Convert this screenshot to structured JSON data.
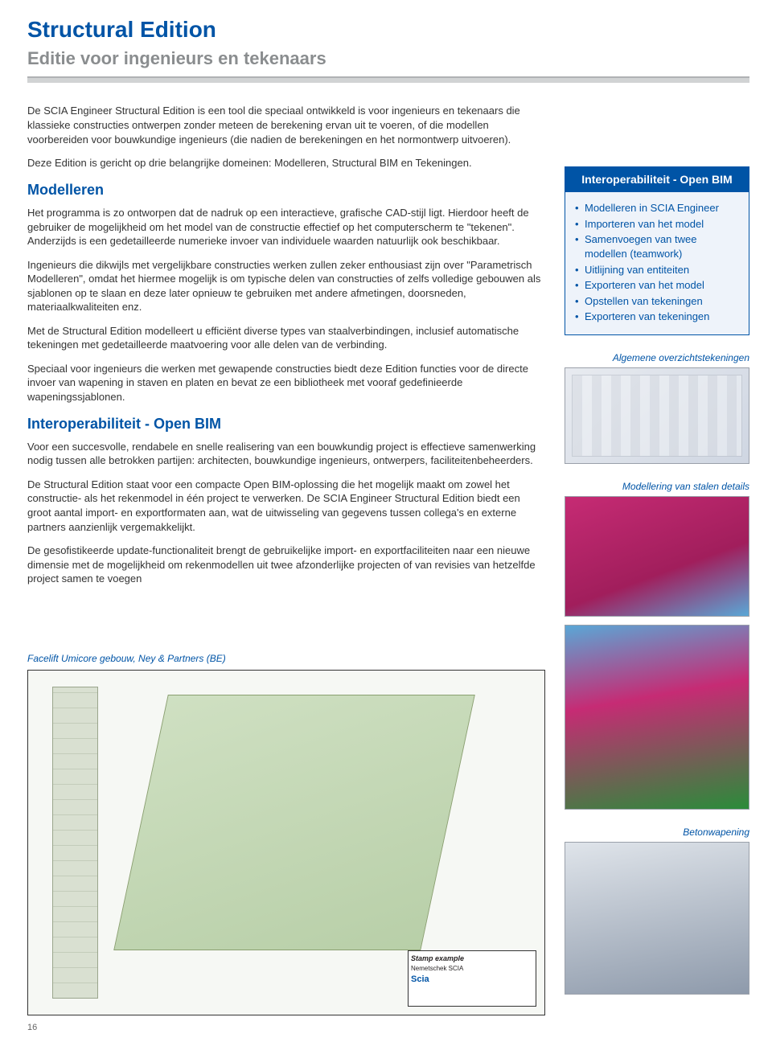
{
  "title": "Structural Edition",
  "subtitle": "Editie voor ingenieurs en tekenaars",
  "intro": "De SCIA Engineer Structural Edition is een tool die speciaal ontwikkeld is voor ingenieurs en tekenaars die klassieke constructies ontwerpen zonder meteen de berekening ervan uit te voeren, of die modellen voorbereiden voor bouwkundige ingenieurs (die nadien de berekeningen en het normontwerp uitvoeren).",
  "intro2": "Deze Edition is gericht op drie belangrijke domeinen: Modelleren, Structural BIM en Tekeningen.",
  "section_modelleren": {
    "heading": "Modelleren",
    "p1": "Het programma is zo ontworpen dat de nadruk op een interactieve, grafische CAD-stijl ligt. Hierdoor heeft de gebruiker de mogelijkheid om het model van de constructie effectief op het computerscherm te \"tekenen\". Anderzijds is een gedetailleerde numerieke invoer van individuele waarden natuurlijk ook beschikbaar.",
    "p2": "Ingenieurs die dikwijls met vergelijkbare constructies werken zullen zeker enthousiast zijn over \"Parametrisch Modelleren\", omdat het hiermee mogelijk is om typische delen van constructies of zelfs volledige gebouwen als sjablonen op te slaan en deze later opnieuw te gebruiken met andere afmetingen, doorsneden, materiaalkwaliteiten enz.",
    "p3": "Met de Structural Edition modelleert u efficiënt diverse types van staalverbindingen, inclusief automatische tekeningen met gedetailleerde maatvoering voor alle delen van de verbinding.",
    "p4": "Speciaal voor ingenieurs die werken met gewapende constructies biedt deze Edition functies voor de directe invoer van wapening in staven en platen en bevat ze een bibliotheek met vooraf gedefinieerde wapeningssjablonen."
  },
  "section_interop": {
    "heading": "Interoperabiliteit - Open BIM",
    "p1": "Voor een succesvolle, rendabele en snelle realisering van een bouwkundig project is effectieve samenwerking nodig tussen alle betrokken partijen: architecten, bouwkundige ingenieurs, ontwerpers, faciliteitenbeheerders.",
    "p2": "De Structural Edition staat voor een compacte Open BIM-oplossing die het mogelijk maakt om zowel het constructie- als het rekenmodel in één project te verwerken. De SCIA Engineer Structural Edition biedt een groot aantal import- en exportformaten aan, wat de uitwisseling van gegevens tussen collega's en externe partners aanzienlijk vergemakkelijkt.",
    "p3": "De gesofistikeerde update-functionaliteit brengt de gebruikelijke import- en exportfaciliteiten naar een nieuwe dimensie met de mogelijkheid om rekenmodellen uit twee afzonderlijke projecten of van revisies van hetzelfde project samen te voegen"
  },
  "sidebar": {
    "title": "Interoperabiliteit - Open BIM",
    "items": [
      "Modelleren in SCIA Engineer",
      "Importeren van het model",
      "Samenvoegen van twee modellen (teamwork)",
      "Uitlijning van entiteiten",
      "Exporteren van het model",
      "Opstellen van tekeningen",
      "Exporteren van tekeningen"
    ]
  },
  "captions": {
    "c1": "Algemene overzichtstekeningen",
    "c2": "Modellering van stalen details",
    "c3": "Betonwapening",
    "c4": "Facelift Umicore gebouw, Ney & Partners (BE)"
  },
  "stamp": {
    "title": "Stamp example",
    "company": "Nemetschek SCIA",
    "logo": "Scia"
  },
  "page_number": "16",
  "colors": {
    "brand_blue": "#0054a6",
    "grey_text": "#8a8d8f",
    "rule_grey": "#d1d3d4",
    "sidebar_bg": "#eef3fa"
  }
}
